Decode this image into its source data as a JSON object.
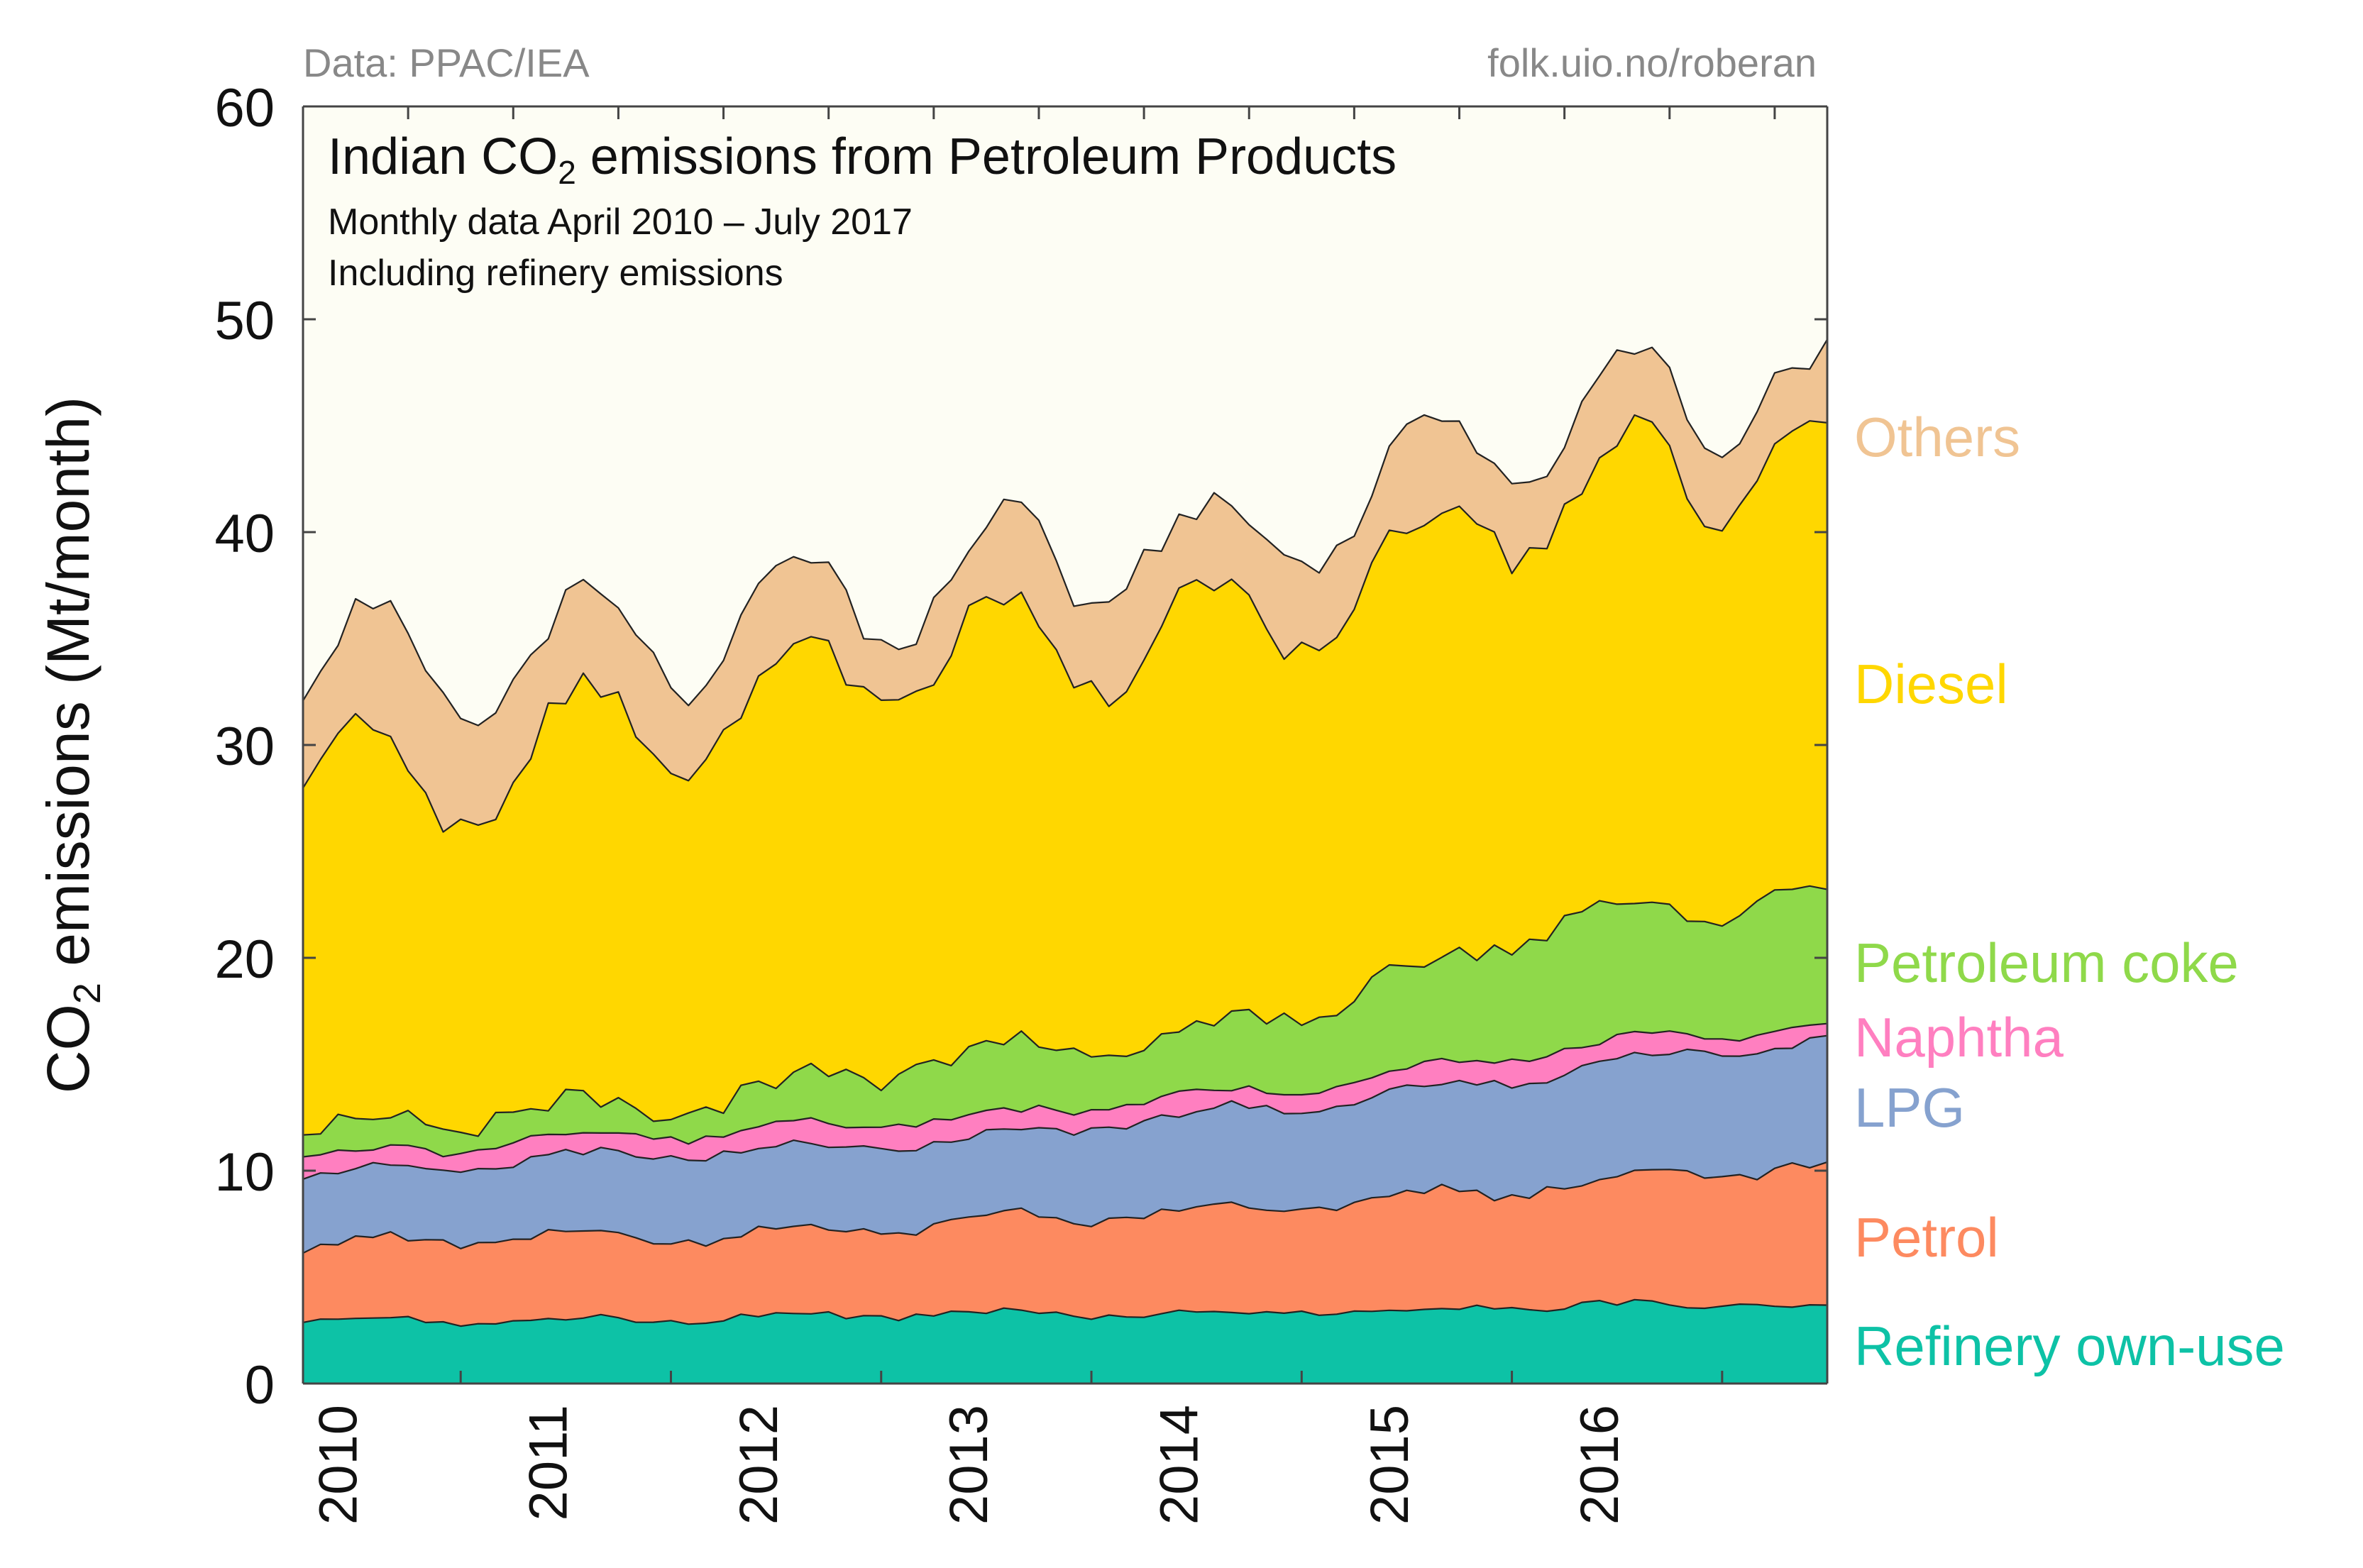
{
  "source_left": "Data: PPAC/IEA",
  "source_right": "folk.uio.no/roberan",
  "chart_data": {
    "type": "area",
    "stacked": true,
    "title": "Indian CO₂ emissions from Petroleum Products",
    "title_prefix": "Indian CO",
    "title_sub": "2",
    "title_suffix": " emissions from Petroleum Products",
    "subtitle1": "Monthly data April 2010 – July 2017",
    "subtitle2": "Including refinery emissions",
    "ylabel": "CO₂ emissions (Mt/month)",
    "ylabel_prefix": "CO",
    "ylabel_sub": "2",
    "ylabel_suffix": " emissions (Mt/month)",
    "ylim": [
      0,
      60
    ],
    "yticks": [
      0,
      10,
      20,
      30,
      40,
      50,
      60
    ],
    "ytick_labels": [
      "0",
      "10",
      "20",
      "30",
      "40",
      "50",
      "60"
    ],
    "xlim": [
      0,
      87
    ],
    "xticks": [
      2,
      14,
      26,
      38,
      50,
      62,
      74
    ],
    "xtick_labels": [
      "2010",
      "2011",
      "2012",
      "2013",
      "2014",
      "2015",
      "2016"
    ],
    "x_grid_ticks": [
      9,
      21,
      33,
      45,
      57,
      69,
      81
    ],
    "x_top_ticks": [
      0,
      6,
      12,
      18,
      24,
      30,
      36,
      42,
      48,
      54,
      60,
      66,
      72,
      78,
      84
    ],
    "legend": [
      {
        "name": "Others",
        "color": "#f0c493",
        "y": 44.5
      },
      {
        "name": "Diesel",
        "color": "#ffd700",
        "y": 32.9
      },
      {
        "name": "Petroleum coke",
        "color": "#8fd94a",
        "y": 19.8
      },
      {
        "name": "Naphtha",
        "color": "#ff7fc0",
        "y": 16.3
      },
      {
        "name": "LPG",
        "color": "#86a2cf",
        "y": 13.0
      },
      {
        "name": "Petrol",
        "color": "#fd8a60",
        "y": 6.9
      },
      {
        "name": "Refinery own-use",
        "color": "#0dc2a6",
        "y": 1.8
      }
    ],
    "cumulative_key": {
      "x": [
        0,
        8,
        12,
        20,
        24,
        32,
        36,
        40,
        44,
        48,
        52,
        56,
        60,
        64,
        68,
        72,
        76,
        80,
        84,
        87
      ],
      "refinery": [
        2.9,
        3.0,
        2.9,
        3.0,
        3.1,
        3.2,
        3.3,
        3.3,
        3.3,
        3.3,
        3.3,
        3.4,
        3.4,
        3.4,
        3.6,
        3.7,
        3.7,
        3.7,
        3.8,
        3.6
      ],
      "petrol": [
        6.4,
        6.7,
        6.9,
        6.8,
        7.0,
        7.2,
        7.5,
        7.8,
        7.8,
        8.1,
        8.2,
        8.3,
        8.5,
        8.8,
        9.0,
        9.5,
        9.5,
        9.9,
        10.2,
        10.0
      ],
      "lpg": [
        9.7,
        10.2,
        10.5,
        10.8,
        10.9,
        11.2,
        11.4,
        11.6,
        12.0,
        12.3,
        12.8,
        13.0,
        13.3,
        13.8,
        14.2,
        14.7,
        15.2,
        15.6,
        15.9,
        15.9
      ],
      "naphtha": [
        10.6,
        11.0,
        11.4,
        11.7,
        11.8,
        12.2,
        12.5,
        12.6,
        12.9,
        13.3,
        13.6,
        13.9,
        14.3,
        14.7,
        15.2,
        15.7,
        16.1,
        16.4,
        16.7,
        16.6
      ],
      "coke": [
        11.8,
        12.5,
        12.9,
        13.0,
        13.4,
        14.5,
        15.3,
        15.5,
        15.7,
        16.0,
        16.6,
        17.3,
        18.6,
        19.3,
        20.6,
        22.2,
        22.3,
        21.8,
        23.0,
        22.8
      ],
      "diesel": [
        29.0,
        27.8,
        29.7,
        30.8,
        31.4,
        33.4,
        34.6,
        34.6,
        34.0,
        36.0,
        35.0,
        36.0,
        37.6,
        38.5,
        40.8,
        42.0,
        42.4,
        42.0,
        44.7,
        43.0
      ],
      "others": [
        34.0,
        33.6,
        34.0,
        35.0,
        35.6,
        36.7,
        37.8,
        38.6,
        38.2,
        39.9,
        38.5,
        40.3,
        41.5,
        42.3,
        44.7,
        45.5,
        46.2,
        45.7,
        48.2,
        46.0
      ]
    }
  }
}
